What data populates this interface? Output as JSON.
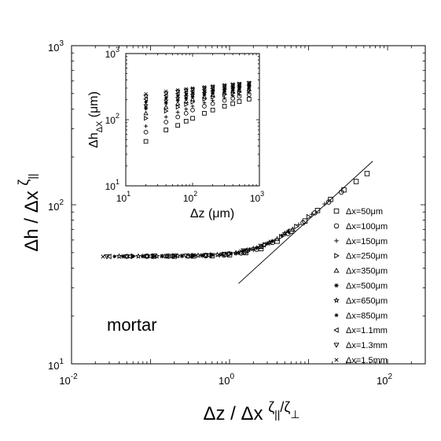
{
  "chart_data": [
    {
      "type": "scatter",
      "title": "",
      "xlabel": "Δz / Δx ζ||/ζ⊥",
      "ylabel": "Δh / Δx ζ||",
      "x_scale": "log",
      "y_scale": "log",
      "xlim": [
        0.01,
        300
      ],
      "ylim": [
        10,
        1000
      ],
      "x_ticks": [
        "10-2",
        "100",
        "102"
      ],
      "y_ticks": [
        "101",
        "102",
        "103"
      ],
      "annotation": "mortar",
      "legend_position": "right",
      "fit_line": {
        "x": [
          1.3,
          65
        ],
        "y": [
          32,
          188
        ]
      },
      "series": [
        {
          "name": "Δx=50μm",
          "marker": "square",
          "x": [
            0.11,
            0.2,
            0.35,
            0.6,
            1.0,
            1.6,
            2.5,
            4,
            6,
            9,
            13,
            19,
            28,
            40,
            55
          ],
          "y": [
            47.5,
            47.5,
            47.6,
            47.8,
            48.5,
            50,
            53,
            59,
            68,
            79,
            92,
            108,
            124,
            140,
            157
          ]
        },
        {
          "name": "Δx=100μm",
          "marker": "circle",
          "x": [
            0.09,
            0.17,
            0.3,
            0.5,
            0.85,
            1.4,
            2.2,
            3.5,
            5.5,
            8.5,
            12,
            18,
            26
          ],
          "y": [
            47.5,
            47.5,
            47.6,
            47.8,
            48.3,
            49.7,
            52.5,
            58,
            66,
            77,
            89,
            104,
            120
          ]
        },
        {
          "name": "Δx=150μm",
          "marker": "plus",
          "x": [
            0.08,
            0.14,
            0.25,
            0.45,
            0.75,
            1.2,
            2,
            3.2,
            5,
            7.5,
            11,
            16
          ],
          "y": [
            47.5,
            47.5,
            47.6,
            47.8,
            48.2,
            49.4,
            52,
            57,
            65,
            75,
            87,
            101
          ]
        },
        {
          "name": "Δx=250μm",
          "marker": "triangle-right",
          "x": [
            0.06,
            0.11,
            0.2,
            0.35,
            0.6,
            1.0,
            1.7,
            2.8,
            4.5,
            7,
            10
          ],
          "y": [
            47.5,
            47.5,
            47.6,
            47.8,
            48.1,
            49,
            51,
            56,
            63,
            73,
            84
          ]
        },
        {
          "name": "Δx=350μm",
          "marker": "triangle-up",
          "x": [
            0.05,
            0.09,
            0.16,
            0.3,
            0.5,
            0.9,
            1.5,
            2.5,
            4,
            6.3
          ],
          "y": [
            47.4,
            47.5,
            47.6,
            47.7,
            48.1,
            48.8,
            50.5,
            54.5,
            61,
            70
          ]
        },
        {
          "name": "Δx=500μm",
          "marker": "asterisk",
          "x": [
            0.045,
            0.08,
            0.14,
            0.25,
            0.45,
            0.8,
            1.3,
            2.2,
            3.5,
            5.5
          ],
          "y": [
            47.4,
            47.5,
            47.6,
            47.7,
            48,
            48.7,
            50,
            53.5,
            59,
            68
          ]
        },
        {
          "name": "Δx=650μm",
          "marker": "star",
          "x": [
            0.04,
            0.07,
            0.12,
            0.22,
            0.4,
            0.7,
            1.2,
            2,
            3.2,
            5
          ],
          "y": [
            47.4,
            47.5,
            47.5,
            47.7,
            48,
            48.5,
            49.8,
            53,
            58,
            66
          ]
        },
        {
          "name": "Δx=850μm",
          "marker": "asterisk-small",
          "x": [
            0.035,
            0.06,
            0.11,
            0.2,
            0.35,
            0.6,
            1.05,
            1.8,
            3,
            4.6
          ],
          "y": [
            47.3,
            47.4,
            47.5,
            47.6,
            47.9,
            48.4,
            49.5,
            52.5,
            57,
            64
          ]
        },
        {
          "name": "Δx=1.1mm",
          "marker": "triangle-left",
          "x": [
            0.03,
            0.055,
            0.1,
            0.18,
            0.32,
            0.55,
            0.95,
            1.6,
            2.7
          ],
          "y": [
            47.3,
            47.4,
            47.5,
            47.6,
            47.8,
            48.3,
            49.3,
            51.8,
            56
          ]
        },
        {
          "name": "Δx=1.3mm",
          "marker": "triangle-down",
          "x": [
            0.028,
            0.05,
            0.09,
            0.16,
            0.28,
            0.5,
            0.85,
            1.5,
            2.5
          ],
          "y": [
            47.2,
            47.3,
            47.4,
            47.5,
            47.8,
            48.2,
            49,
            51.5,
            55
          ]
        },
        {
          "name": "Δx=1.5mm",
          "marker": "x",
          "x": [
            0.025,
            0.045,
            0.08,
            0.14,
            0.25,
            0.45,
            0.8,
            1.4,
            2.3
          ],
          "y": [
            47.2,
            47.3,
            47.4,
            47.5,
            47.7,
            48.1,
            48.8,
            51,
            54
          ]
        }
      ]
    },
    {
      "type": "scatter",
      "title": "",
      "xlabel": "Δz (μm)",
      "ylabel": "Δh ΔX (μm)",
      "x_scale": "log",
      "y_scale": "log",
      "xlim": [
        10,
        1000
      ],
      "ylim": [
        10,
        1000
      ],
      "x_ticks": [
        "101",
        "102",
        "103"
      ],
      "y_ticks": [
        "101",
        "102",
        "103"
      ],
      "series": [
        {
          "name": "Δx=50μm",
          "marker": "square",
          "x": [
            20,
            40,
            60,
            80,
            100,
            150,
            200,
            300,
            400,
            500,
            700
          ],
          "y": [
            47,
            70,
            82,
            95,
            105,
            125,
            140,
            160,
            175,
            188,
            205
          ]
        },
        {
          "name": "Δx=100μm",
          "marker": "circle",
          "x": [
            20,
            40,
            60,
            80,
            100,
            150,
            200,
            300,
            400,
            500,
            700
          ],
          "y": [
            65,
            92,
            110,
            125,
            140,
            160,
            175,
            195,
            210,
            225,
            240
          ]
        },
        {
          "name": "Δx=150μm",
          "marker": "plus",
          "x": [
            20,
            40,
            60,
            80,
            100,
            150,
            200,
            300,
            400,
            500,
            700
          ],
          "y": [
            80,
            110,
            130,
            145,
            160,
            180,
            195,
            215,
            230,
            240,
            255
          ]
        },
        {
          "name": "Δx=250μm",
          "marker": "triangle-right",
          "x": [
            20,
            40,
            60,
            80,
            100,
            150,
            200,
            300,
            400,
            500,
            700
          ],
          "y": [
            105,
            135,
            155,
            170,
            185,
            205,
            220,
            240,
            252,
            262,
            275
          ]
        },
        {
          "name": "Δx=350μm",
          "marker": "triangle-up",
          "x": [
            20,
            40,
            60,
            80,
            100,
            150,
            200,
            300,
            400,
            500,
            700
          ],
          "y": [
            125,
            155,
            175,
            190,
            203,
            222,
            237,
            255,
            268,
            278,
            290
          ]
        },
        {
          "name": "Δx=500μm",
          "marker": "asterisk",
          "x": [
            20,
            40,
            60,
            80,
            100,
            150,
            200,
            300,
            400,
            500,
            700
          ],
          "y": [
            148,
            178,
            197,
            210,
            222,
            240,
            253,
            270,
            282,
            292,
            305
          ]
        },
        {
          "name": "Δx=650μm",
          "marker": "star",
          "x": [
            20,
            40,
            60,
            80,
            100,
            150,
            200,
            300,
            400,
            500,
            700
          ],
          "y": [
            165,
            195,
            212,
            225,
            237,
            253,
            266,
            283,
            295,
            305,
            318
          ]
        },
        {
          "name": "Δx=850μm",
          "marker": "asterisk-small",
          "x": [
            20,
            40,
            60,
            80,
            100,
            150,
            200,
            300,
            400,
            500,
            700
          ],
          "y": [
            185,
            213,
            230,
            242,
            253,
            268,
            280,
            296,
            308,
            318,
            330
          ]
        },
        {
          "name": "Δx=1.1mm",
          "marker": "triangle-left",
          "x": [
            20,
            40,
            60,
            80,
            100,
            150,
            200,
            300,
            400,
            500,
            700
          ],
          "y": [
            205,
            232,
            248,
            260,
            270,
            285,
            296,
            311,
            322,
            331,
            343
          ]
        },
        {
          "name": "Δx=1.3mm",
          "marker": "triangle-down",
          "x": [
            20,
            40,
            60,
            80,
            100,
            150,
            200,
            300,
            400,
            500,
            700
          ],
          "y": [
            225,
            250,
            265,
            276,
            285,
            299,
            310,
            324,
            334,
            343,
            355
          ]
        },
        {
          "name": "Δx=1.5mm",
          "marker": "x",
          "x": [
            20,
            40,
            60,
            80,
            100,
            150,
            200,
            300,
            400,
            500,
            700
          ],
          "y": [
            245,
            268,
            282,
            292,
            300,
            313,
            323,
            336,
            346,
            354,
            365
          ]
        }
      ]
    }
  ]
}
